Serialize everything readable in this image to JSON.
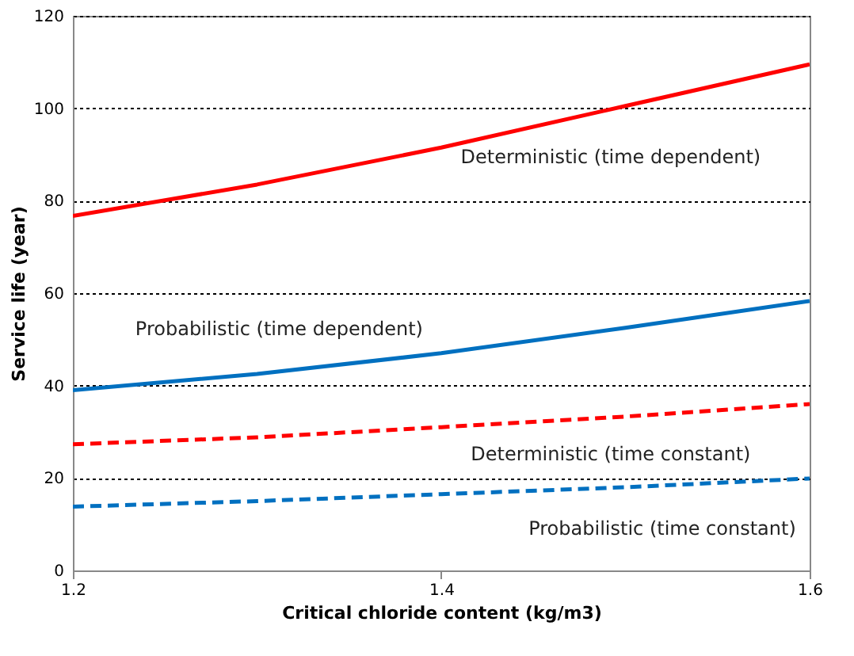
{
  "chart_data": {
    "type": "line",
    "xlabel": "Critical chloride content (kg/m3)",
    "ylabel": "Service life (year)",
    "x": [
      1.2,
      1.3,
      1.4,
      1.5,
      1.6
    ],
    "series": [
      {
        "name": "Deterministic (time dependent)",
        "color": "#ff0000",
        "line_style": "solid",
        "values": [
          76.7,
          83.5,
          91.5,
          100.5,
          109.5
        ]
      },
      {
        "name": "Probabilistic (time dependent)",
        "color": "#0070c0",
        "line_style": "solid",
        "values": [
          39,
          42.5,
          47,
          52.5,
          58.3
        ]
      },
      {
        "name": "Deterministic (time constant)",
        "color": "#ff0000",
        "line_style": "dashed",
        "values": [
          27.3,
          28.8,
          31,
          33.3,
          36
        ]
      },
      {
        "name": "Probabilistic (time constant)",
        "color": "#0070c0",
        "line_style": "dashed",
        "values": [
          13.8,
          15,
          16.5,
          18,
          19.9
        ]
      }
    ],
    "xlim": [
      1.2,
      1.6
    ],
    "xticks": [
      1.2,
      1.4,
      1.6
    ],
    "ylim": [
      0,
      120
    ],
    "yticks": [
      0,
      20,
      40,
      60,
      80,
      100,
      120
    ],
    "grid": "y",
    "marker": "none"
  }
}
